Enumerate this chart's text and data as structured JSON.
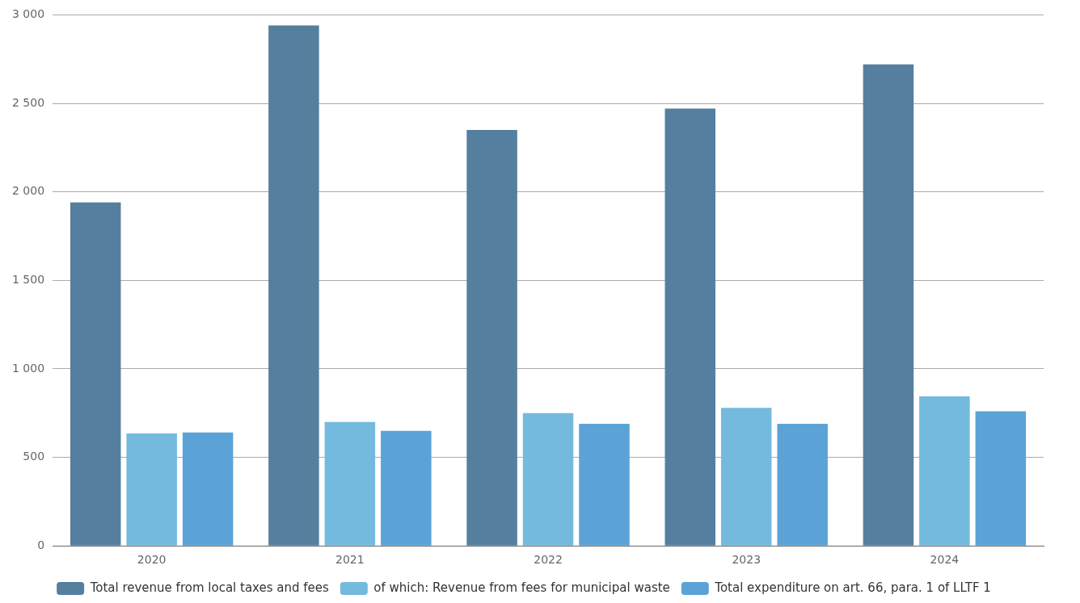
{
  "chart_data": {
    "type": "bar",
    "categories": [
      "2020",
      "2021",
      "2022",
      "2023",
      "2024"
    ],
    "series": [
      {
        "name": "Total revenue from local taxes and fees",
        "color": "#557f9e",
        "values": [
          1940,
          2940,
          2350,
          2470,
          2720
        ]
      },
      {
        "name": "of which: Revenue from fees for municipal waste",
        "color": "#74bade",
        "values": [
          635,
          700,
          750,
          780,
          845
        ]
      },
      {
        "name": "Total expenditure on art. 66, para. 1 of LLTF 1",
        "color": "#5ba3d6",
        "values": [
          640,
          650,
          690,
          690,
          760
        ]
      }
    ],
    "ylim": [
      0,
      3000
    ],
    "yticks": [
      0,
      500,
      {
        "value": 1000,
        "label": "1 000"
      },
      {
        "value": 1500,
        "label": "1 500"
      },
      {
        "value": 2000,
        "label": "2 000"
      },
      {
        "value": 2500,
        "label": "2 500"
      },
      {
        "value": 3000,
        "label": "3 000"
      }
    ],
    "grid": "y",
    "legend": "bottom"
  }
}
